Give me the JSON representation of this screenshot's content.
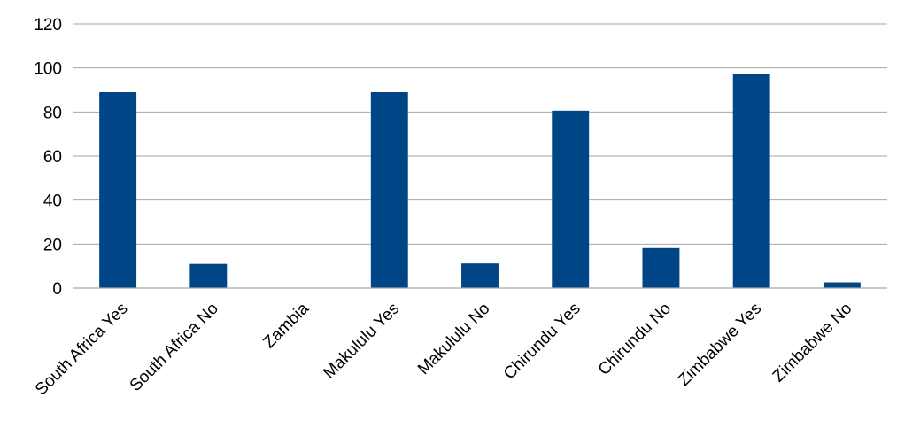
{
  "chart_data": {
    "type": "bar",
    "categories": [
      "South Africa Yes",
      "South Africa No",
      "Zambia",
      "Makululu Yes",
      "Makululu No",
      "Chirundu Yes",
      "Chirundu No",
      "Zimbabwe Yes",
      "Zimbabwe No"
    ],
    "values": [
      89,
      11,
      0,
      89,
      11.2,
      80.6,
      18.2,
      97.4,
      2.6
    ],
    "ylim": [
      0,
      120
    ],
    "yticks": [
      0,
      20,
      40,
      60,
      80,
      100,
      120
    ],
    "grid": true,
    "legend": "none",
    "bar_color": "#004586"
  }
}
